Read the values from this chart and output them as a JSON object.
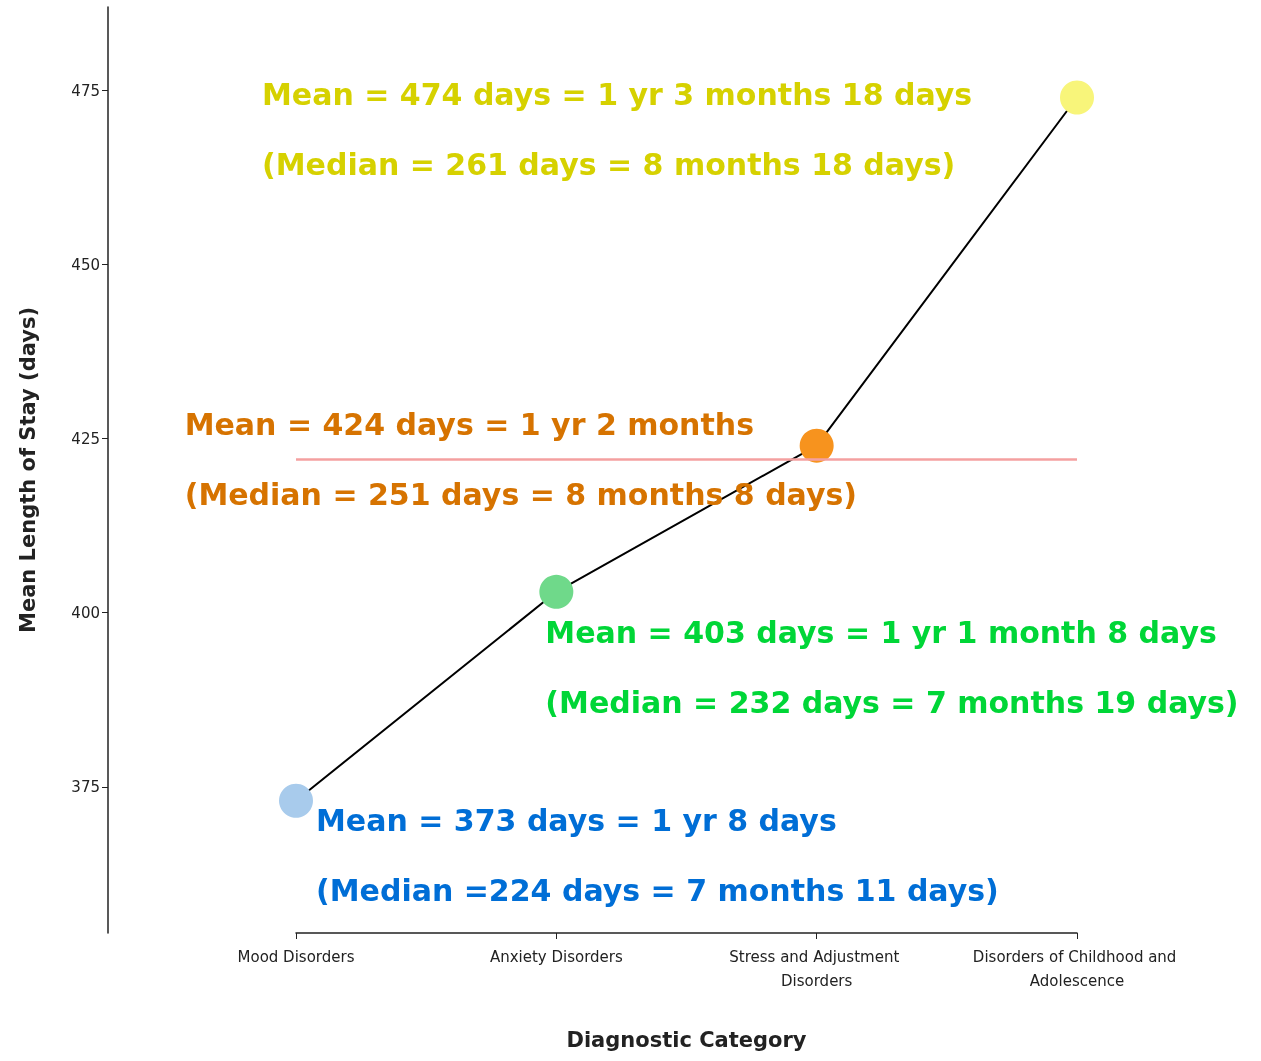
{
  "chart_data": {
    "type": "line",
    "xlabel": "Diagnostic Category",
    "ylabel": "Mean Length of Stay (days)",
    "categories": [
      "Mood Disorders",
      "Anxiety Disorders",
      "Stress and Adjustment Disorders",
      "Disorders of Childhood and Adolescence"
    ],
    "series": [
      {
        "color": "#000000",
        "colors": [
          "#a8cbec",
          "#6fd98a",
          "#f7931e",
          "#f8f57a"
        ],
        "values": [
          373,
          403,
          424,
          474
        ]
      }
    ],
    "ylim": [
      354,
      487
    ],
    "yticks": [
      375,
      400,
      425,
      450,
      475
    ],
    "ref_lines": [
      {
        "axis": "y",
        "value": 422,
        "color": "#f4a0a0"
      }
    ],
    "annotations": [
      "Mean = 373 days = 1 yr 8 days",
      "(Median =224 days = 7 months 11 days)",
      "Mean = 403 days = 1 yr 1 month 8 days",
      "(Median = 232 days = 7 months 19 days)",
      "Mean = 424 days = 1 yr 2 months",
      "(Median = 251 days = 8 months 8 days)",
      "Mean = 474 days = 1 yr 3 months 18 days",
      "(Median = 261 days = 8 months 18 days)"
    ],
    "grid": false,
    "marker": "circle",
    "line_style": "solid"
  }
}
